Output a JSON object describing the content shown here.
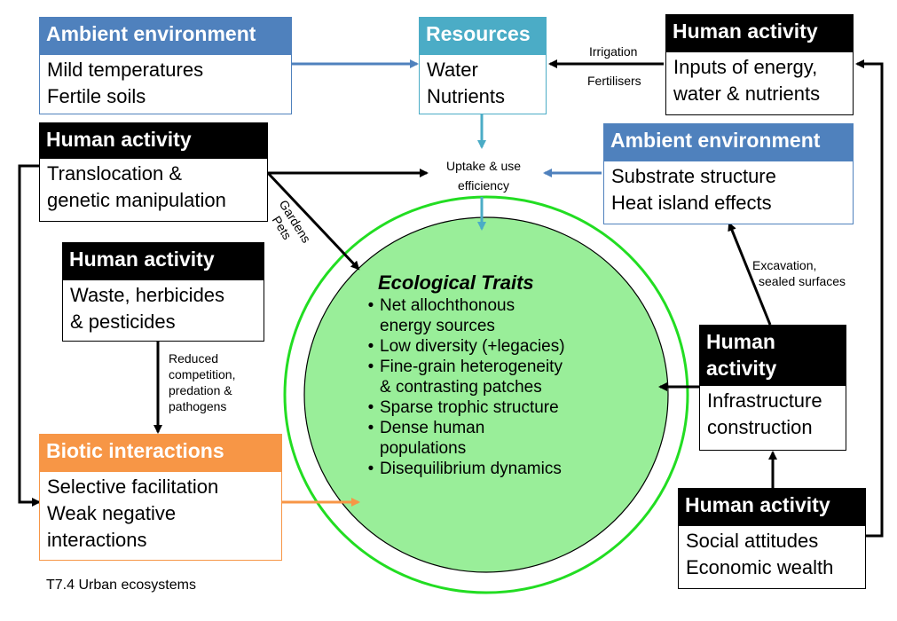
{
  "boxes": {
    "ambient_top": {
      "title": "Ambient environment",
      "lines": [
        "Mild temperatures",
        "Fertile soils"
      ]
    },
    "resources": {
      "title": "Resources",
      "lines": [
        "Water",
        "Nutrients"
      ]
    },
    "human_inputs": {
      "title": "Human activity",
      "lines": [
        "Inputs of energy,",
        "water & nutrients"
      ]
    },
    "human_translocation": {
      "title": "Human activity",
      "lines": [
        "Translocation &",
        "genetic manipulation"
      ]
    },
    "ambient_right": {
      "title": "Ambient environment",
      "lines": [
        "Substrate structure",
        "Heat island effects"
      ]
    },
    "human_waste": {
      "title": "Human activity",
      "lines": [
        "Waste, herbicides",
        "& pesticides"
      ]
    },
    "human_infrastructure": {
      "title_lines": [
        "Human",
        "activity"
      ],
      "lines": [
        "Infrastructure",
        "construction"
      ]
    },
    "biotic": {
      "title": "Biotic interactions",
      "lines": [
        "Selective facilitation",
        "Weak negative",
        "interactions"
      ]
    },
    "human_social": {
      "title": "Human activity",
      "lines": [
        "Social attitudes",
        "Economic wealth"
      ]
    }
  },
  "labels": {
    "irrigation": "Irrigation",
    "fertilisers": "Fertilisers",
    "uptake": [
      "Uptake & use",
      "efficiency"
    ],
    "gardens": "Gardens",
    "pets": "Pets",
    "excavation": [
      "Excavation,",
      "sealed surfaces"
    ],
    "reduced": [
      "Reduced",
      "competition,",
      "predation &",
      "pathogens"
    ]
  },
  "center": {
    "title": "Ecological Traits",
    "bullet": "•",
    "items": [
      [
        "Net allochthonous",
        "energy sources"
      ],
      [
        "Low diversity (+legacies)"
      ],
      [
        "Fine-grain heterogeneity",
        "& contrasting patches"
      ],
      [
        "Sparse trophic structure"
      ],
      [
        "Dense human",
        "populations"
      ],
      [
        "Disequilibrium dynamics"
      ]
    ]
  },
  "caption": "T7.4 Urban ecosystems",
  "colors": {
    "black": "#000000",
    "blue": "#4f81bd",
    "teal": "#4bacc6",
    "orange": "#f79646",
    "circle_fill": "#99ee99",
    "circle_ring": "#22dd22"
  }
}
